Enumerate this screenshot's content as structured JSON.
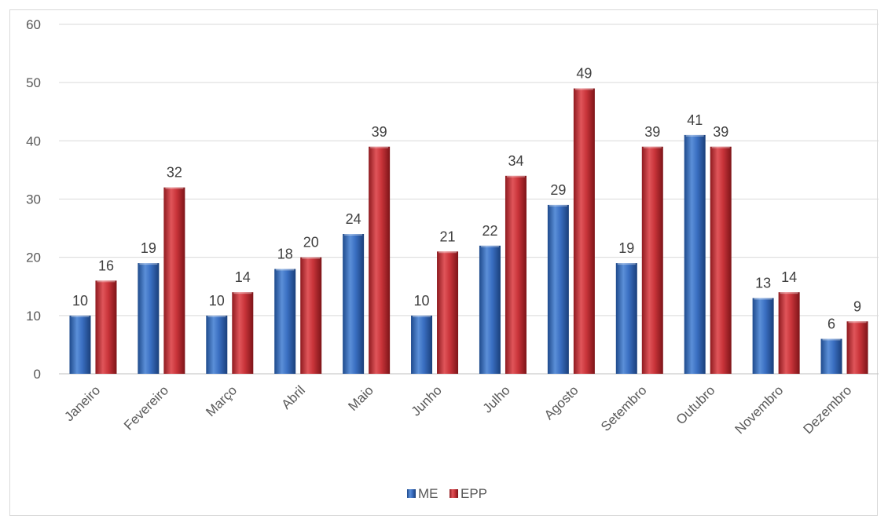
{
  "chart_data": {
    "type": "bar",
    "title": "",
    "xlabel": "",
    "ylabel": "",
    "ylim": [
      0,
      60
    ],
    "yticks": [
      0,
      10,
      20,
      30,
      40,
      50,
      60
    ],
    "grid": true,
    "legend_position": "bottom",
    "data_labels": true,
    "categories": [
      "Janeiro",
      "Fevereiro",
      "Março",
      "Abril",
      "Maio",
      "Junho",
      "Julho",
      "Agosto",
      "Setembro",
      "Outubro",
      "Novembro",
      "Dezembro"
    ],
    "series": [
      {
        "name": "ME",
        "color": "#2f65b3",
        "values": [
          10,
          19,
          10,
          18,
          24,
          10,
          22,
          29,
          19,
          41,
          13,
          6
        ]
      },
      {
        "name": "EPP",
        "color": "#c0282e",
        "values": [
          16,
          32,
          14,
          20,
          39,
          21,
          34,
          49,
          39,
          39,
          14,
          9
        ]
      }
    ]
  }
}
